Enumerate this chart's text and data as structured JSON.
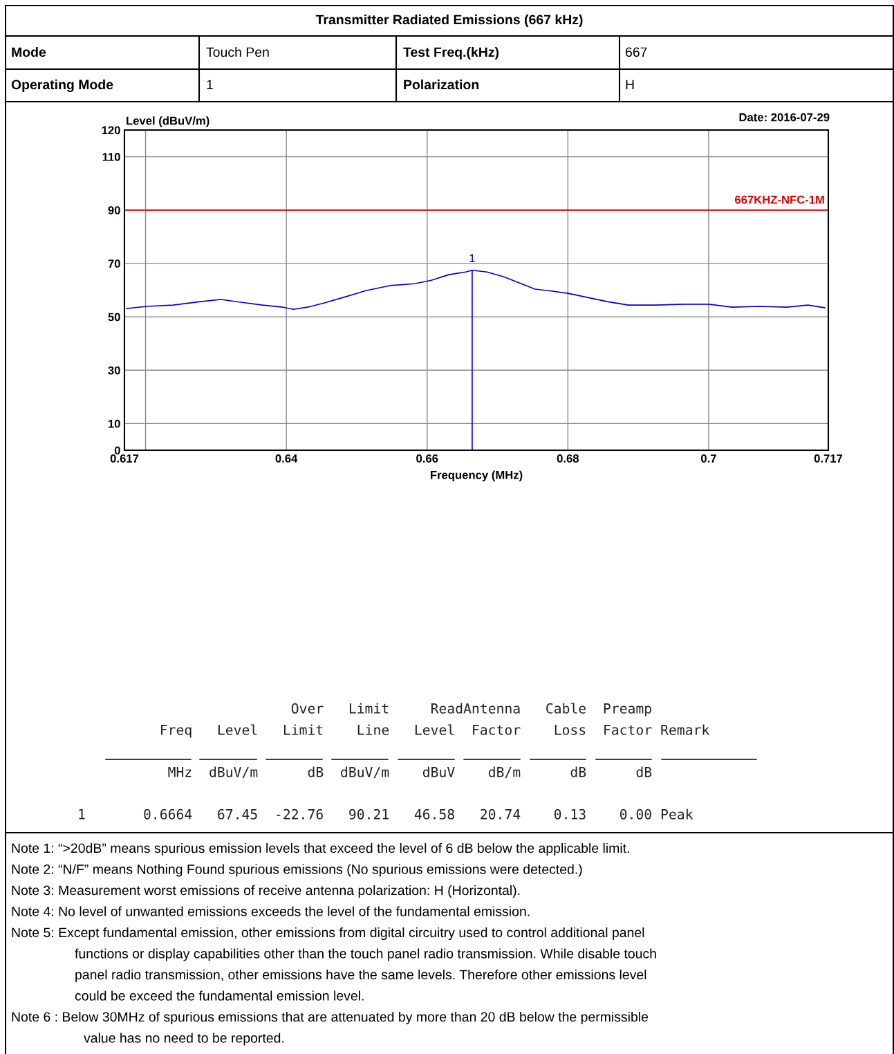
{
  "chart_data": {
    "type": "line",
    "title": "Transmitter Radiated Emissions (667 kHz)",
    "xlabel": "Frequency (MHz)",
    "ylabel": "Level (dBuV/m)",
    "series": [
      {
        "color": "#0000cc",
        "x": [
          0.6173,
          0.6202,
          0.6239,
          0.6278,
          0.6307,
          0.6337,
          0.6366,
          0.6395,
          0.641,
          0.643,
          0.6454,
          0.6484,
          0.6513,
          0.6547,
          0.6582,
          0.6606,
          0.6631,
          0.6655,
          0.6664,
          0.6685,
          0.6709,
          0.6734,
          0.6753,
          0.6778,
          0.68,
          0.6827,
          0.6856,
          0.6886,
          0.6925,
          0.6964,
          0.7,
          0.7033,
          0.7072,
          0.7111,
          0.7141,
          0.7165
        ],
        "values": [
          53.1,
          53.9,
          54.4,
          55.7,
          56.5,
          55.4,
          54.4,
          53.6,
          52.8,
          53.6,
          55.2,
          57.5,
          59.8,
          61.7,
          62.4,
          63.7,
          65.8,
          66.8,
          67.45,
          66.8,
          65.0,
          62.4,
          60.4,
          59.6,
          58.8,
          57.3,
          55.7,
          54.4,
          54.4,
          54.7,
          54.7,
          53.6,
          53.9,
          53.6,
          54.4,
          53.4
        ]
      },
      {
        "color": "#0000cc",
        "x": [
          0.6664,
          0.6664
        ],
        "values": [
          0,
          67.45
        ]
      }
    ],
    "xlim": [
      0.617,
      0.717
    ],
    "ylim": [
      0,
      120
    ],
    "xticks": [
      0.617,
      {
        "value": 0.62,
        "label": null
      },
      0.64,
      0.66,
      0.68,
      0.7,
      0.717
    ],
    "yticks": [
      0,
      10,
      30,
      50,
      70,
      90,
      110,
      120
    ],
    "grid": true,
    "marker": "none",
    "line_style": "solid",
    "ref_lines": [
      {
        "axis": "y",
        "value": 90,
        "label": "667KHZ-NFC-1M",
        "color": "#e00000"
      }
    ],
    "annotations": [
      "Mode",
      "Touch Pen",
      "Test Freq.(kHz)",
      "667",
      "Operating Mode",
      "1",
      "Polarization",
      "H",
      "Date: 2016-07-29",
      {
        "text": "1",
        "x": 0.6664,
        "y": 67.45
      },
      "                          Over   Limit     ReadAntenna   Cable  Preamp",
      "          Freq   Level   Limit    Line   Level  Factor    Loss  Factor Remark",
      "           MHz  dBuV/m      dB  dBuV/m    dBuV    dB/m      dB      dB",
      "1       0.6664   67.45  -22.76   90.21   46.58   20.74    0.13    0.00 Peak",
      "Note 1: “>20dB” means spurious emission levels that exceed the level of 6 dB below the applicable limit.",
      "Note 2: “N/F” means Nothing Found spurious emissions (No spurious emissions were detected.)",
      "Note 3: Measurement worst emissions of receive antenna polarization: H (Horizontal).",
      "Note 4: No level of unwanted emissions exceeds the level of the fundamental emission.",
      "Note 5: Except fundamental emission, other emissions from digital circuitry used to control additional panel",
      "functions or display capabilities other than the touch panel radio transmission. While disable touch",
      "panel radio transmission, other emissions have the same levels. Therefore other emissions level",
      "could be exceed the fundamental emission level.",
      "Note 6 : Below 30MHz of spurious emissions that are attenuated by more than 20 dB below the permissible",
      "value has no need to be reported."
    ]
  }
}
